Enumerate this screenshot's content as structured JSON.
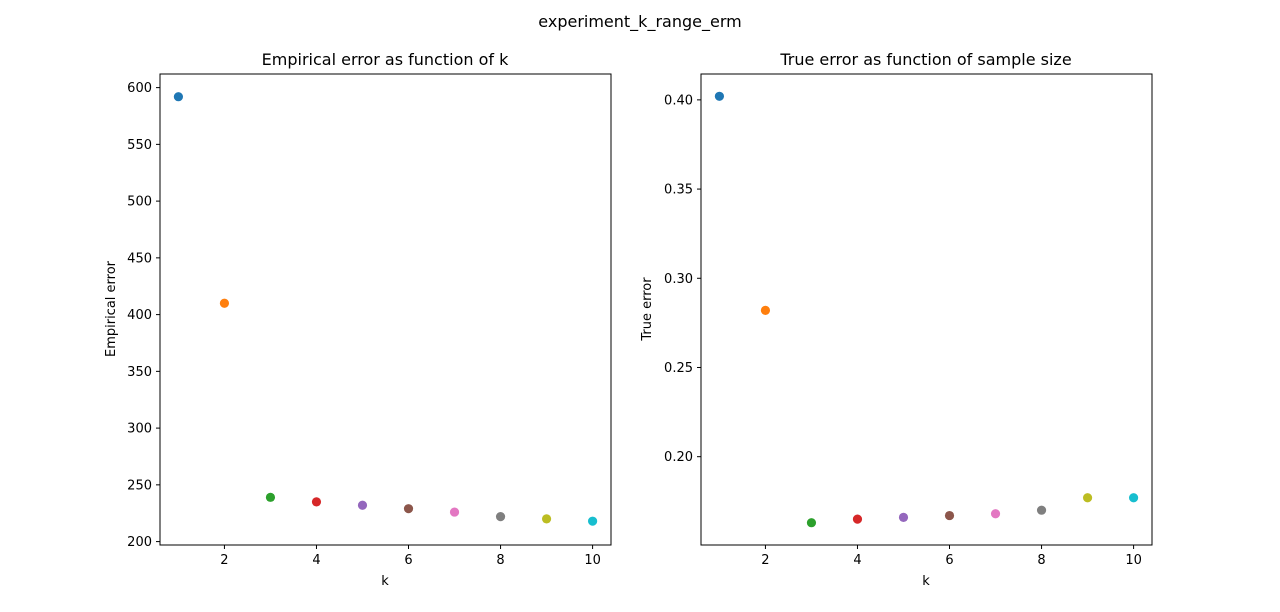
{
  "figure": {
    "suptitle": "experiment_k_range_erm"
  },
  "chart_data": [
    {
      "type": "scatter",
      "title": "Empirical error as function of k",
      "xlabel": "k",
      "ylabel": "Empirical error",
      "xlim": [
        0.6,
        10.4
      ],
      "ylim": [
        197,
        612
      ],
      "xticks": [
        2,
        4,
        6,
        8,
        10
      ],
      "xtick_labels": [
        "2",
        "4",
        "6",
        "8",
        "10"
      ],
      "yticks": [
        200,
        250,
        300,
        350,
        400,
        450,
        500,
        550,
        600
      ],
      "ytick_labels": [
        "200",
        "250",
        "300",
        "350",
        "400",
        "450",
        "500",
        "550",
        "600"
      ],
      "grid": false,
      "x": [
        1,
        2,
        3,
        4,
        5,
        6,
        7,
        8,
        9,
        10
      ],
      "y": [
        592,
        410,
        239,
        235,
        232,
        229,
        226,
        222,
        220,
        218
      ],
      "colors": [
        "#1f77b4",
        "#ff7f0e",
        "#2ca02c",
        "#d62728",
        "#9467bd",
        "#8c564b",
        "#e377c2",
        "#7f7f7f",
        "#bcbd22",
        "#17becf"
      ]
    },
    {
      "type": "scatter",
      "title": "True error as function of sample size",
      "xlabel": "k",
      "ylabel": "True error",
      "xlim": [
        0.6,
        10.4
      ],
      "ylim": [
        0.1505,
        0.4145
      ],
      "xticks": [
        2,
        4,
        6,
        8,
        10
      ],
      "xtick_labels": [
        "2",
        "4",
        "6",
        "8",
        "10"
      ],
      "yticks": [
        0.2,
        0.25,
        0.3,
        0.35,
        0.4
      ],
      "ytick_labels": [
        "0.20",
        "0.25",
        "0.30",
        "0.35",
        "0.40"
      ],
      "grid": false,
      "x": [
        1,
        2,
        3,
        4,
        5,
        6,
        7,
        8,
        9,
        10
      ],
      "y": [
        0.402,
        0.282,
        0.163,
        0.165,
        0.166,
        0.167,
        0.168,
        0.17,
        0.177,
        0.177
      ],
      "colors": [
        "#1f77b4",
        "#ff7f0e",
        "#2ca02c",
        "#d62728",
        "#9467bd",
        "#8c564b",
        "#e377c2",
        "#7f7f7f",
        "#bcbd22",
        "#17becf"
      ]
    }
  ]
}
